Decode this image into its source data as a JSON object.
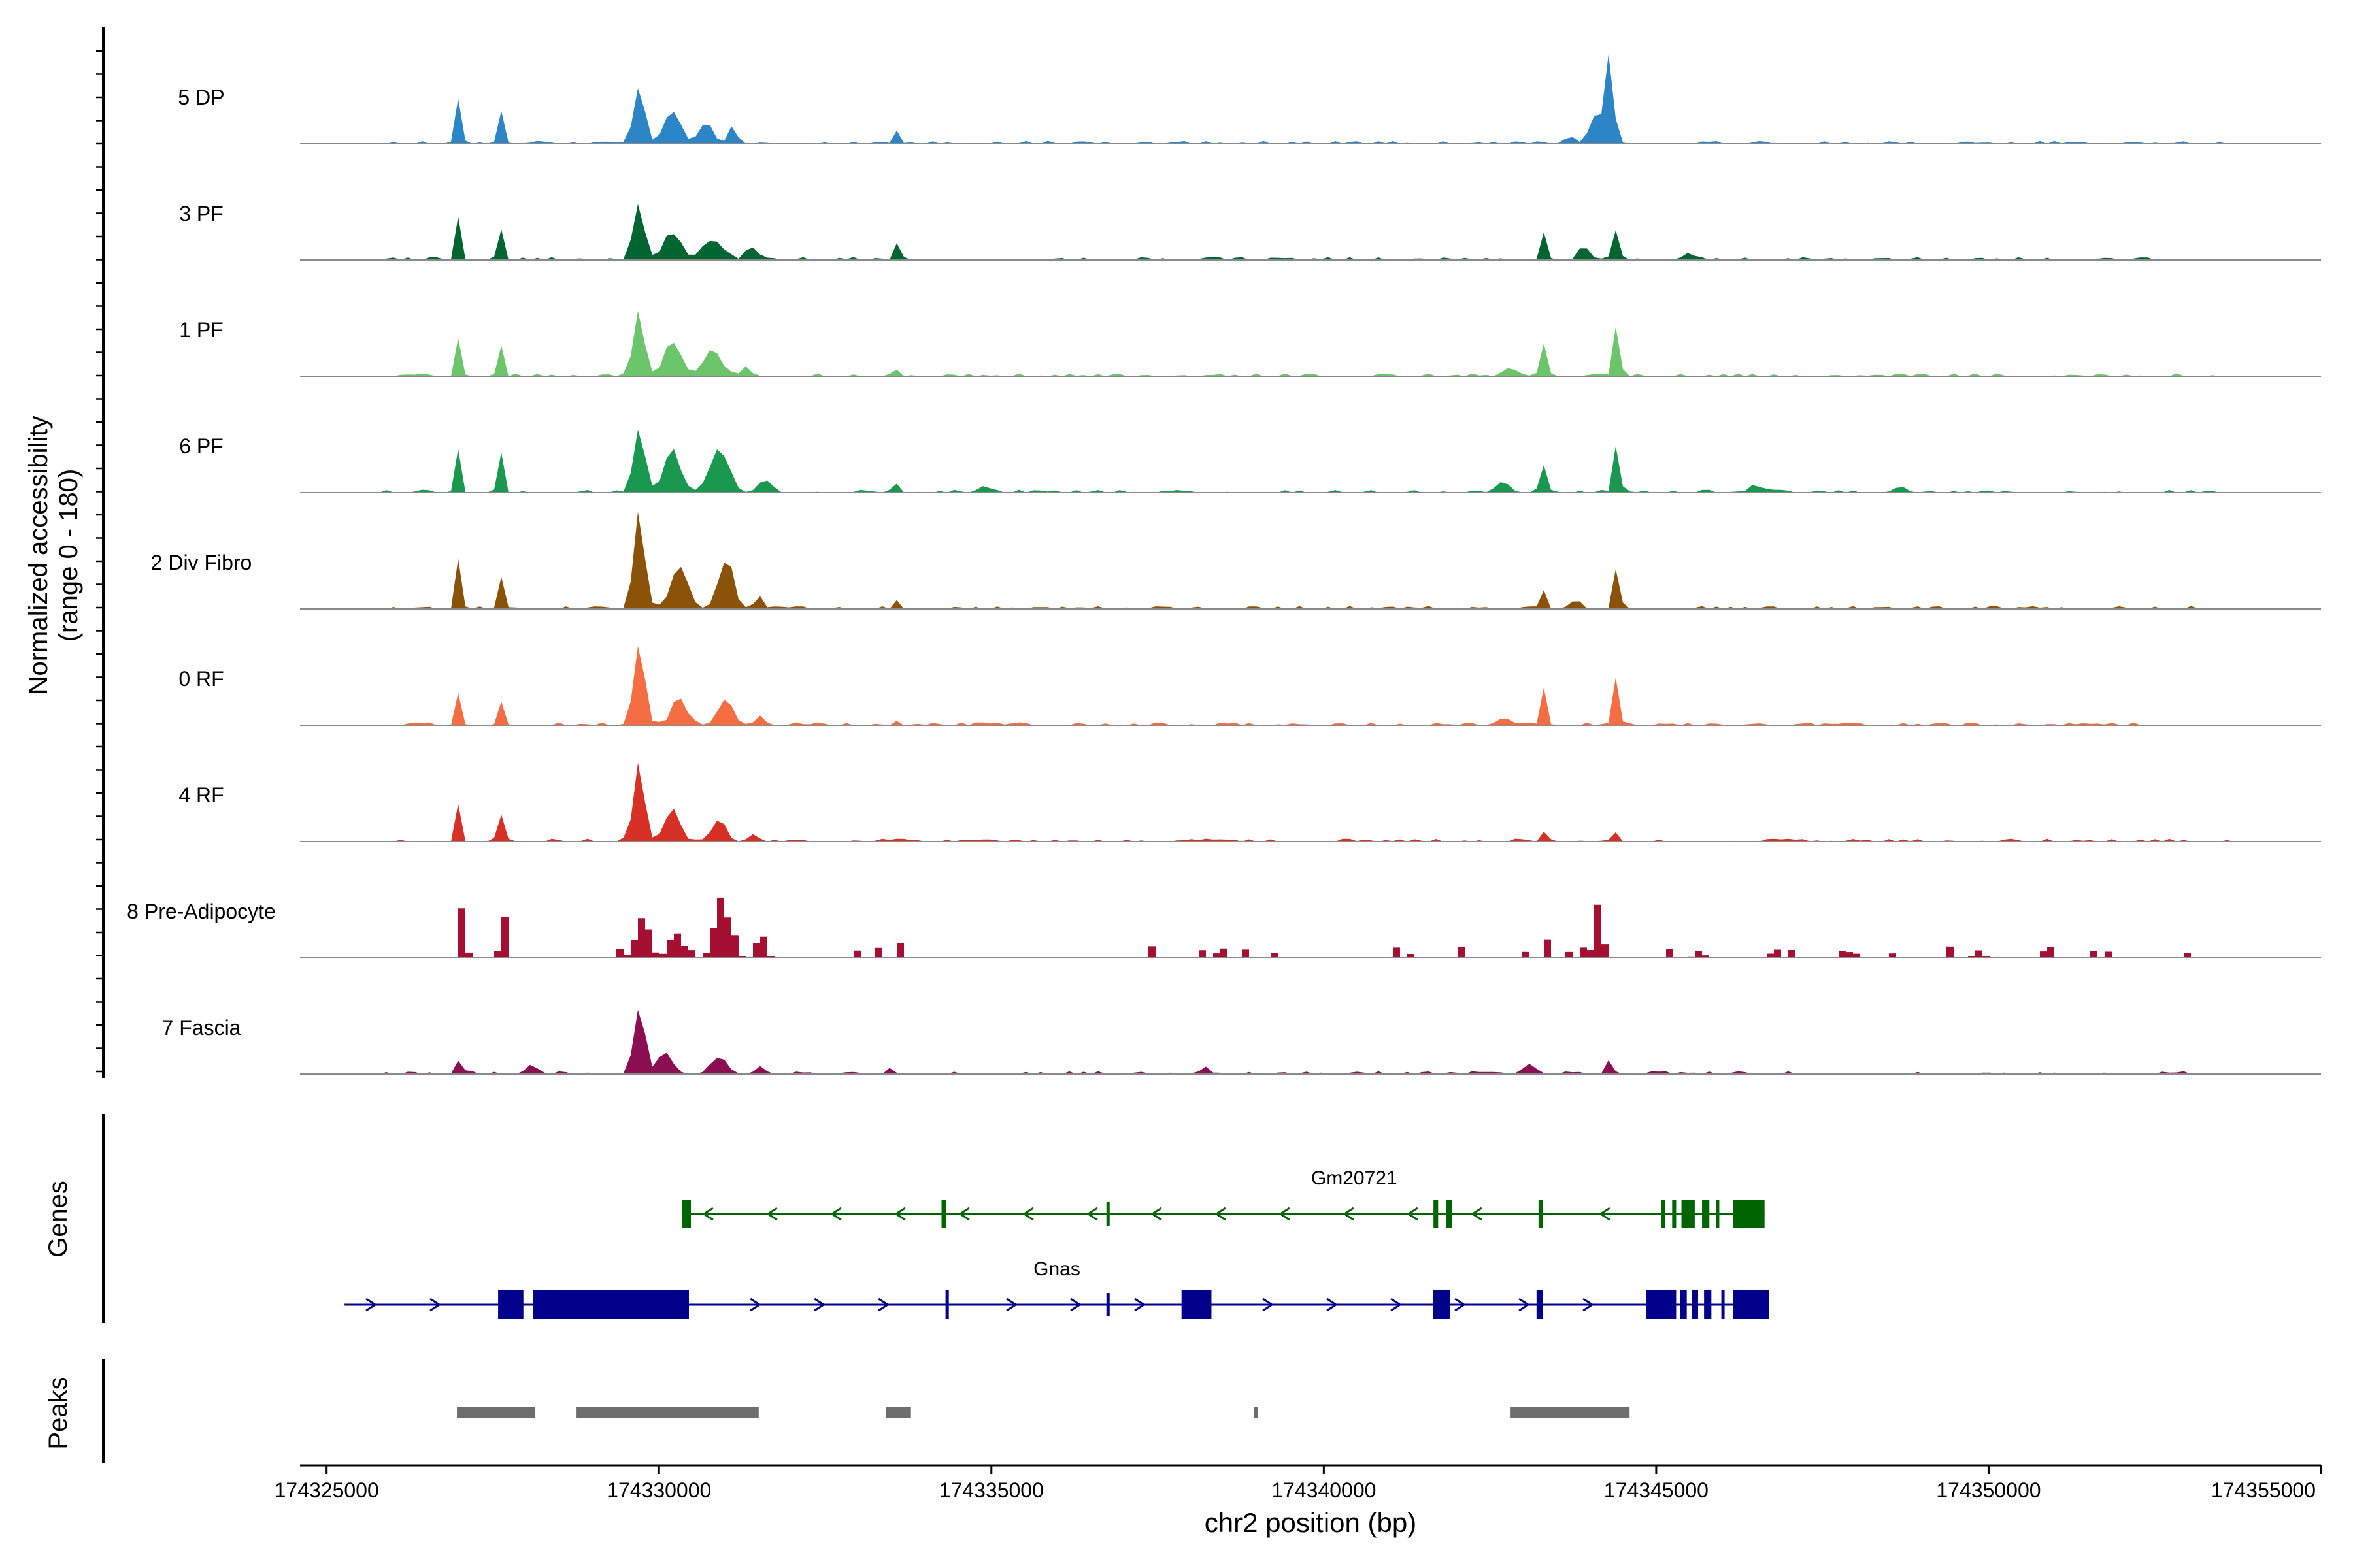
{
  "chart_data": {
    "type": "coverage",
    "ylabel_line1": "Normalized accessibility",
    "ylabel_line2": "(range 0 - 180)",
    "y_range": [
      0,
      180
    ],
    "xlabel": "chr2 position (bp)",
    "xlim": [
      174324600,
      174355000
    ],
    "xticks": [
      174325000,
      174330000,
      174335000,
      174340000,
      174345000,
      174350000,
      174355000
    ],
    "xtick_labels": [
      "174325000",
      "174330000",
      "174335000",
      "174340000",
      "174345000",
      "174350000",
      "174355000"
    ],
    "tracks": [
      {
        "name": "5 DP",
        "color": "#2C85C6",
        "style": "smooth",
        "peaks": [
          [
            174327000,
            30,
            110
          ],
          [
            174327600,
            30,
            90
          ],
          [
            174329700,
            80,
            115
          ],
          [
            174330200,
            120,
            60
          ],
          [
            174330700,
            100,
            40
          ],
          [
            174331100,
            60,
            30
          ],
          [
            174333600,
            25,
            40
          ],
          [
            174344300,
            60,
            160
          ],
          [
            174344100,
            100,
            50
          ],
          [
            174343700,
            70,
            14
          ]
        ]
      },
      {
        "name": "3 PF",
        "color": "#006530",
        "style": "smooth",
        "peaks": [
          [
            174327000,
            30,
            100
          ],
          [
            174327600,
            30,
            95
          ],
          [
            174329700,
            80,
            110
          ],
          [
            174330200,
            120,
            55
          ],
          [
            174330800,
            150,
            40
          ],
          [
            174331400,
            80,
            25
          ],
          [
            174333600,
            30,
            40
          ],
          [
            174343300,
            40,
            50
          ],
          [
            174344400,
            50,
            55
          ],
          [
            174343900,
            70,
            25
          ],
          [
            174345500,
            100,
            12
          ]
        ]
      },
      {
        "name": "1 PF",
        "color": "#6CC56A",
        "style": "smooth",
        "peaks": [
          [
            174327000,
            30,
            95
          ],
          [
            174327600,
            30,
            100
          ],
          [
            174329700,
            80,
            115
          ],
          [
            174330200,
            120,
            65
          ],
          [
            174330800,
            140,
            45
          ],
          [
            174331300,
            60,
            20
          ],
          [
            174333600,
            25,
            12
          ],
          [
            174343300,
            40,
            60
          ],
          [
            174344400,
            45,
            95
          ],
          [
            174342800,
            80,
            18
          ]
        ]
      },
      {
        "name": "6 PF",
        "color": "#1A9850",
        "style": "smooth",
        "peaks": [
          [
            174327000,
            30,
            105
          ],
          [
            174327600,
            30,
            110
          ],
          [
            174329700,
            80,
            130
          ],
          [
            174330200,
            120,
            80
          ],
          [
            174330900,
            140,
            80
          ],
          [
            174331600,
            80,
            25
          ],
          [
            174333600,
            30,
            18
          ],
          [
            174334900,
            50,
            14
          ],
          [
            174343300,
            40,
            50
          ],
          [
            174344400,
            45,
            90
          ],
          [
            174342700,
            100,
            18
          ],
          [
            174346500,
            100,
            12
          ],
          [
            174348700,
            80,
            10
          ]
        ]
      },
      {
        "name": "2 Div Fibro",
        "color": "#8B5209",
        "style": "smooth",
        "peaks": [
          [
            174327000,
            30,
            120
          ],
          [
            174327600,
            30,
            95
          ],
          [
            174329700,
            80,
            175
          ],
          [
            174330300,
            120,
            80
          ],
          [
            174331000,
            110,
            95
          ],
          [
            174331500,
            60,
            25
          ],
          [
            174333600,
            25,
            18
          ],
          [
            174343300,
            40,
            35
          ],
          [
            174344400,
            45,
            75
          ],
          [
            174343800,
            60,
            15
          ]
        ]
      },
      {
        "name": "0 RF",
        "color": "#F46D43",
        "style": "smooth",
        "peaks": [
          [
            174327000,
            30,
            80
          ],
          [
            174327600,
            30,
            75
          ],
          [
            174329700,
            80,
            145
          ],
          [
            174330300,
            110,
            45
          ],
          [
            174331000,
            110,
            45
          ],
          [
            174331500,
            60,
            15
          ],
          [
            174333600,
            25,
            12
          ],
          [
            174343300,
            40,
            65
          ],
          [
            174344400,
            45,
            85
          ],
          [
            174342700,
            80,
            15
          ]
        ]
      },
      {
        "name": "4 RF",
        "color": "#D73027",
        "style": "smooth",
        "peaks": [
          [
            174327000,
            30,
            80
          ],
          [
            174327600,
            30,
            85
          ],
          [
            174329700,
            80,
            150
          ],
          [
            174330200,
            110,
            55
          ],
          [
            174330900,
            100,
            40
          ],
          [
            174331400,
            60,
            15
          ],
          [
            174343300,
            30,
            18
          ],
          [
            174344400,
            30,
            18
          ]
        ]
      },
      {
        "name": "8 Pre-Adipocyte",
        "color": "#A50F32",
        "style": "blocky",
        "peaks": [
          [
            174327000,
            40,
            110
          ],
          [
            174327600,
            40,
            110
          ],
          [
            174329700,
            100,
            75
          ],
          [
            174330200,
            100,
            50
          ],
          [
            174330900,
            110,
            110
          ],
          [
            174331500,
            60,
            30
          ],
          [
            174333600,
            30,
            35
          ],
          [
            174338400,
            40,
            30
          ],
          [
            174343300,
            40,
            20
          ],
          [
            174343900,
            40,
            40
          ],
          [
            174344100,
            40,
            140
          ],
          [
            174345600,
            60,
            14
          ],
          [
            174347900,
            60,
            14
          ],
          [
            174349800,
            60,
            14
          ]
        ]
      },
      {
        "name": "7 Fascia",
        "color": "#8C0E52",
        "style": "smooth",
        "peaks": [
          [
            174327000,
            50,
            25
          ],
          [
            174328100,
            60,
            20
          ],
          [
            174329700,
            80,
            130
          ],
          [
            174330100,
            110,
            40
          ],
          [
            174330900,
            120,
            30
          ],
          [
            174331500,
            60,
            14
          ],
          [
            174333500,
            40,
            14
          ],
          [
            174338200,
            60,
            14
          ],
          [
            174343100,
            100,
            18
          ],
          [
            174344300,
            50,
            30
          ]
        ]
      }
    ],
    "gene_panel_label": "Genes",
    "genes": [
      {
        "name": "Gm20721",
        "color": "#006400",
        "strand": "-",
        "start": 174330350,
        "end": 174346630,
        "exons": [
          [
            174330350,
            174330480
          ],
          [
            174334250,
            174334320
          ],
          [
            174336730,
            174336750
          ],
          [
            174341650,
            174341720
          ],
          [
            174341840,
            174341930
          ],
          [
            174343230,
            174343300
          ],
          [
            174345080,
            174345130
          ],
          [
            174345240,
            174345300
          ],
          [
            174345380,
            174345580
          ],
          [
            174345690,
            174345800
          ],
          [
            174345900,
            174345930
          ],
          [
            174346160,
            174346630
          ]
        ]
      },
      {
        "name": "Gnas",
        "color": "#00008B",
        "strand": "+",
        "start": 174325270,
        "end": 174346700,
        "exons": [
          [
            174327580,
            174327960
          ],
          [
            174328100,
            174330450
          ],
          [
            174334310,
            174334360
          ],
          [
            174336730,
            174336750
          ],
          [
            174337860,
            174338310
          ],
          [
            174341640,
            174341900
          ],
          [
            174343200,
            174343300
          ],
          [
            174344850,
            174345300
          ],
          [
            174345360,
            174345460
          ],
          [
            174345540,
            174345630
          ],
          [
            174345720,
            174345830
          ],
          [
            174345980,
            174346020
          ],
          [
            174346160,
            174346700
          ]
        ]
      }
    ],
    "peaks_panel_label": "Peaks",
    "peak_regions": [
      [
        174326960,
        174328140
      ],
      [
        174328760,
        174331500
      ],
      [
        174333410,
        174333790
      ],
      [
        174338950,
        174339010
      ],
      [
        174342810,
        174344600
      ]
    ],
    "colors": {
      "axis": "#000000",
      "baseline": "#8A8A8A",
      "peak_bar": "#6E6E6E"
    }
  }
}
